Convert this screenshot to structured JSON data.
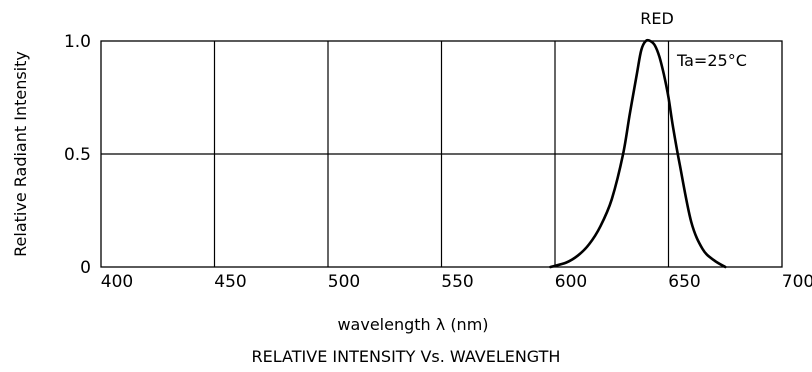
{
  "chart_data": {
    "type": "line",
    "title": "RELATIVE INTENSITY Vs. WAVELENGTH",
    "xlabel": "wavelength λ (nm)",
    "ylabel": "Relative Radiant Intensity",
    "xlim": [
      400,
      700
    ],
    "ylim": [
      0,
      1.0
    ],
    "x_ticks": [
      400,
      450,
      500,
      550,
      600,
      650,
      700
    ],
    "x_tick_labels": [
      "400",
      "450",
      "500",
      "550",
      "600",
      "650",
      "700"
    ],
    "y_ticks": [
      0,
      0.5,
      1.0
    ],
    "y_tick_labels": [
      "0",
      "0.5",
      "1.0"
    ],
    "grid": true,
    "series": [
      {
        "name": "RED",
        "x": [
          598,
          605,
          610,
          615,
          620,
          625,
          630,
          633,
          636,
          638,
          640,
          642,
          644,
          646,
          648,
          650,
          652,
          655,
          660,
          665,
          670,
          675
        ],
        "y": [
          0.0,
          0.02,
          0.05,
          0.1,
          0.18,
          0.3,
          0.5,
          0.68,
          0.85,
          0.96,
          1.0,
          1.0,
          0.98,
          0.93,
          0.85,
          0.75,
          0.62,
          0.45,
          0.2,
          0.08,
          0.03,
          0.0
        ]
      }
    ],
    "annotations": [
      "RED",
      "Ta=25°C"
    ]
  }
}
